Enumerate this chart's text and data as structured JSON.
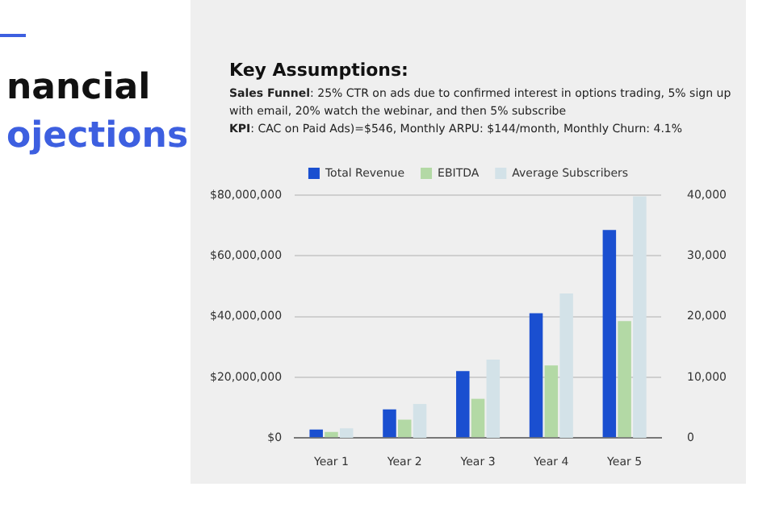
{
  "chart_data": {
    "type": "bar",
    "title": "nancial\nojections",
    "subtitle": "Key Assumptions:",
    "annotations": [
      "Sales Funnel: 25% CTR on ads due to confirmed interest in options trading, 5% sign up with email, 20% watch the webinar, and then 5% subscribe",
      "KPI: CAC on Paid Ads)=$546, Monthly ARPU:  $144/month, Monthly Churn: 4.1%"
    ],
    "categories": [
      "Year 1",
      "Year 2",
      "Year 3",
      "Year 4",
      "Year 5"
    ],
    "series": [
      {
        "name": "Total Revenue",
        "color": "#1a4fd0",
        "values": [
          2800000,
          9400000,
          22000000,
          41100000,
          68500000
        ]
      },
      {
        "name": "EBITDA",
        "color": "#b3d9a5",
        "values": [
          2000000,
          6000000,
          12900000,
          23900000,
          38500000
        ]
      },
      {
        "name": "Average Subscribers",
        "color": "#d3e2e8",
        "axis": "y2",
        "values": [
          1600,
          5600,
          12900,
          23800,
          39800
        ]
      }
    ],
    "ylim": [
      0,
      80000000
    ],
    "yticks": [
      {
        "value": 0,
        "label": "$0"
      },
      {
        "value": 20000000,
        "label": "$20,000,000"
      },
      {
        "value": 40000000,
        "label": "$40,000,000"
      },
      {
        "value": 60000000,
        "label": "$60,000,000"
      },
      {
        "value": 80000000,
        "label": "$80,000,000"
      }
    ],
    "y2lim": [
      0,
      40000
    ],
    "y2ticks": [
      0,
      {
        "value": 10000,
        "label": "10,000"
      },
      {
        "value": 20000,
        "label": "20,000"
      },
      {
        "value": 30000,
        "label": "30,000"
      },
      {
        "value": 40000,
        "label": "40,000"
      }
    ],
    "grid": "y",
    "legend": "top"
  }
}
